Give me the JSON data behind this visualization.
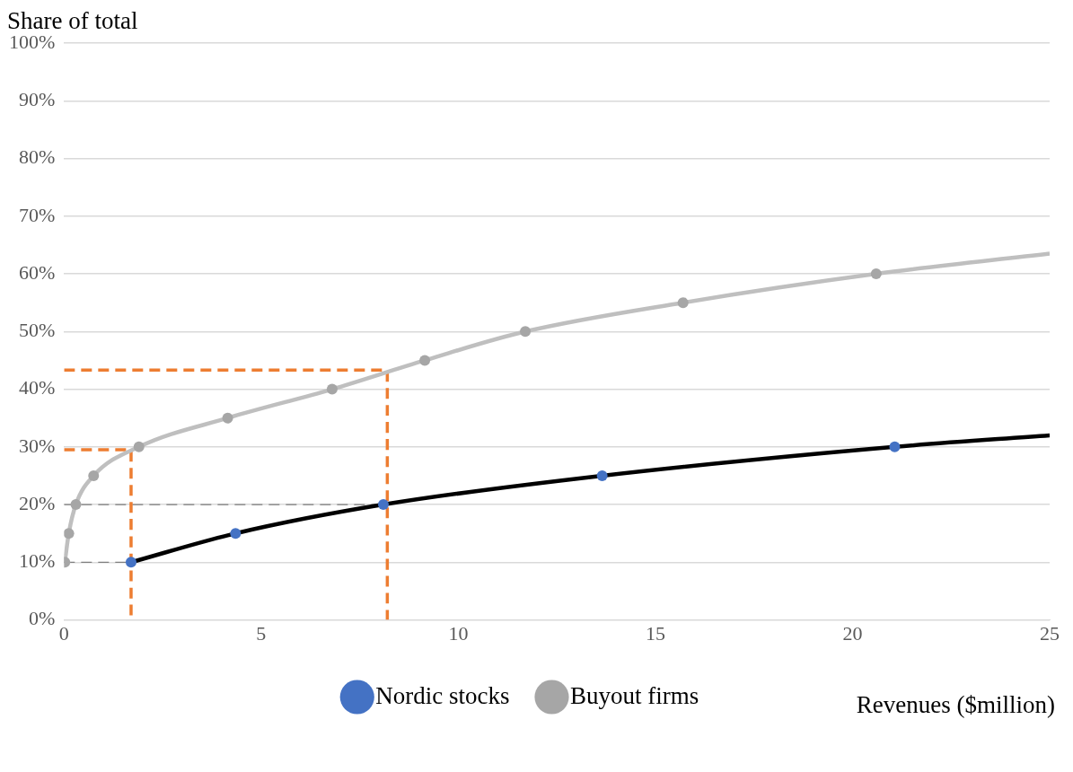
{
  "chart_data": {
    "type": "line",
    "xlabel": "Revenues ($million)",
    "ylabel": "Share of total",
    "series": [
      {
        "name": "Nordic stocks",
        "color": "#000000",
        "x": [
          1.7,
          4.35,
          8.1,
          13.65,
          21.07,
          25
        ],
        "values": [
          10,
          15,
          20,
          25,
          30,
          32
        ]
      },
      {
        "name": "Buyout firms",
        "color": "#bfbfbf",
        "x": [
          0.02,
          0.12,
          0.3,
          0.75,
          1.9,
          4.15,
          6.8,
          9.15,
          11.7,
          15.7,
          20.6,
          25
        ],
        "values": [
          10,
          15,
          20,
          25,
          30,
          35,
          40,
          45,
          50,
          55,
          60,
          63.5
        ]
      },
      {
        "color": "#ed7d31",
        "line_style": "dashed",
        "marker": "none",
        "x": [
          0,
          1.7,
          1.7
        ],
        "values": [
          29.5,
          29.5,
          0
        ]
      },
      {
        "color": "#ed7d31",
        "line_style": "dashed",
        "marker": "none",
        "x": [
          0,
          8.2,
          8.2
        ],
        "values": [
          43.3,
          43.3,
          0
        ]
      },
      {
        "color": "#7f7f7f",
        "line_style": "dashed",
        "marker": "none",
        "x": [
          0,
          1.7
        ],
        "values": [
          10,
          10
        ]
      },
      {
        "color": "#7f7f7f",
        "line_style": "dashed",
        "marker": "none",
        "x": [
          0,
          8.1
        ],
        "values": [
          20,
          20
        ]
      }
    ],
    "xlim": [
      0,
      25
    ],
    "xticks": [
      0,
      5,
      10,
      15,
      20,
      25
    ],
    "ylim": [
      0,
      100
    ],
    "yticks": [
      {
        "value": 0,
        "label": "0%"
      },
      {
        "value": 10,
        "label": "10%"
      },
      {
        "value": 20,
        "label": "20%"
      },
      {
        "value": 30,
        "label": "30%"
      },
      {
        "value": 40,
        "label": "40%"
      },
      {
        "value": 50,
        "label": "50%"
      },
      {
        "value": 60,
        "label": "60%"
      },
      {
        "value": 70,
        "label": "70%"
      },
      {
        "value": 80,
        "label": "80%"
      },
      {
        "value": 90,
        "label": "90%"
      },
      {
        "value": 100,
        "label": "100%"
      }
    ],
    "grid": "y",
    "legend": "bottom",
    "marker": "circle",
    "line_style": "solid"
  }
}
